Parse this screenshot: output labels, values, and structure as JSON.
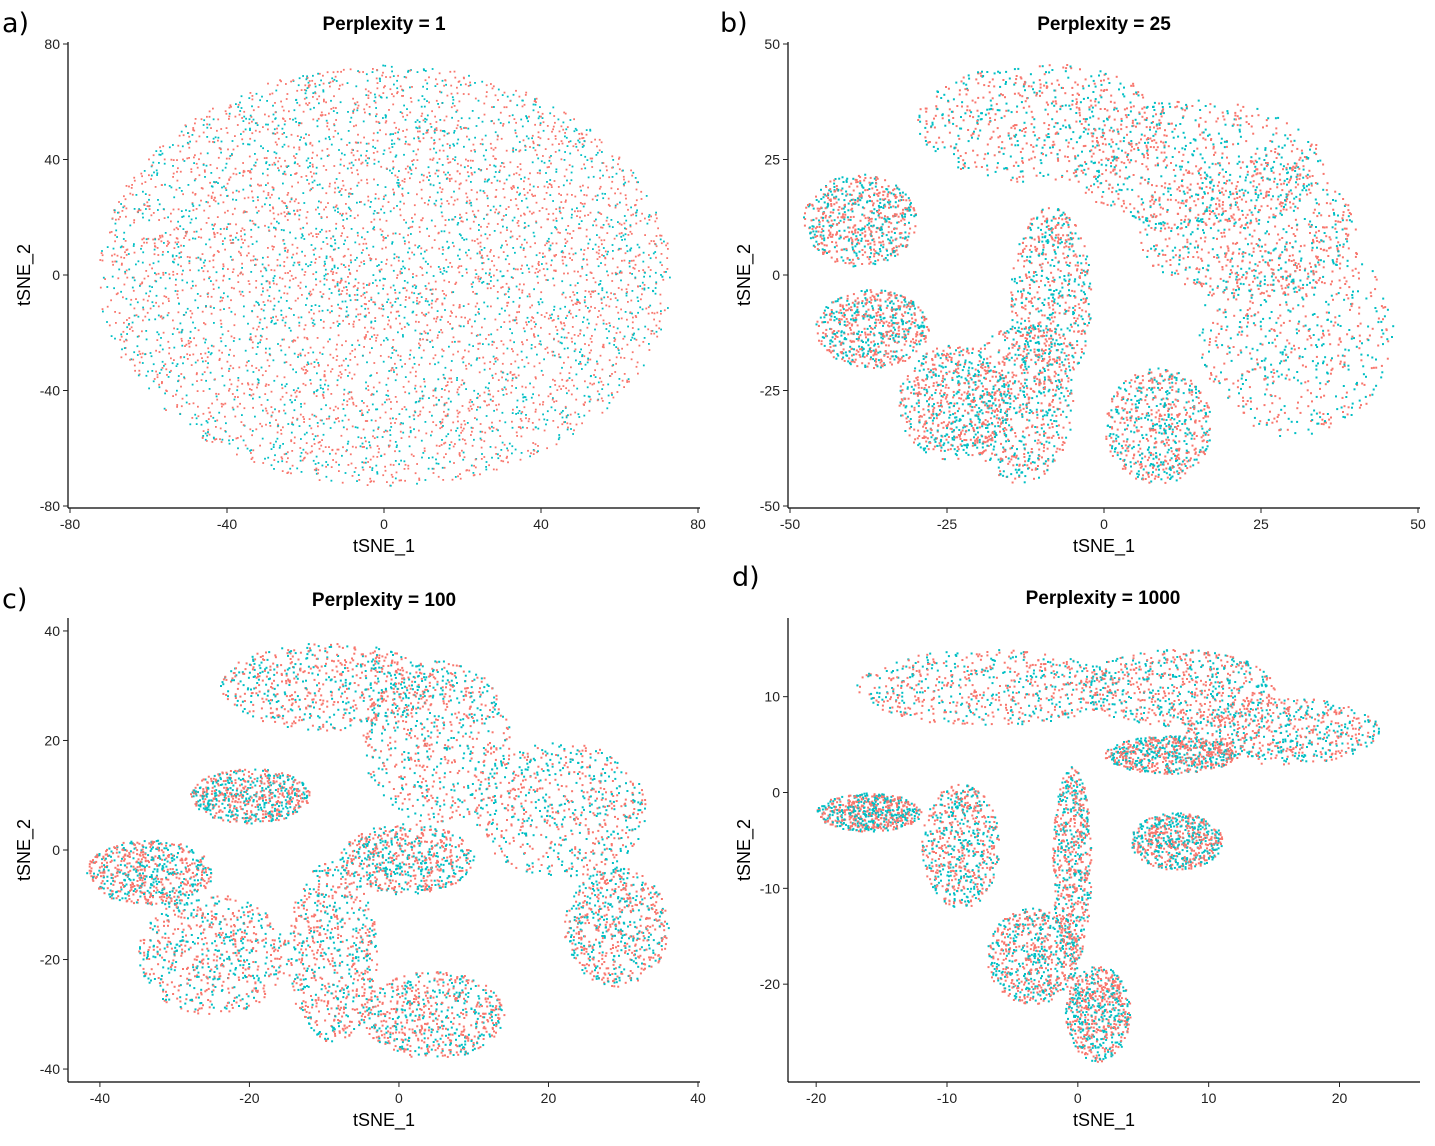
{
  "colors": {
    "series_a": "#F8766D",
    "series_b": "#00BFC4"
  },
  "chart_data": [
    {
      "type": "scatter",
      "panel_label": "a)",
      "title": "Perplexity = 1",
      "xlabel": "tSNE_1",
      "ylabel": "tSNE_2",
      "xlim": [
        -80,
        80
      ],
      "ylim": [
        -80,
        80
      ],
      "xticks": [
        "-80",
        "-40",
        "0",
        "40",
        "80"
      ],
      "yticks": [
        "80",
        "40",
        "0",
        "-40",
        "-80"
      ],
      "grid": false,
      "shape": "ellipse",
      "regions": [
        {
          "x": [
            -73,
            73
          ],
          "y": [
            -73,
            73
          ]
        }
      ]
    },
    {
      "type": "scatter",
      "panel_label": "b)",
      "title": "Perplexity = 25",
      "xlabel": "tSNE_1",
      "ylabel": "tSNE_2",
      "xlim": [
        -50,
        50
      ],
      "ylim": [
        -50,
        50
      ],
      "xticks": [
        "-50",
        "-25",
        "0",
        "25",
        "50"
      ],
      "yticks": [
        "50",
        "25",
        "0",
        "-25",
        "-50"
      ],
      "grid": false,
      "shape": "clusters",
      "regions": [
        {
          "x": [
            -30,
            10
          ],
          "y": [
            20,
            46
          ]
        },
        {
          "x": [
            -5,
            35
          ],
          "y": [
            10,
            38
          ]
        },
        {
          "x": [
            5,
            40
          ],
          "y": [
            -5,
            25
          ]
        },
        {
          "x": [
            15,
            46
          ],
          "y": [
            -35,
            10
          ]
        },
        {
          "x": [
            -48,
            -30
          ],
          "y": [
            2,
            22
          ]
        },
        {
          "x": [
            -46,
            -28
          ],
          "y": [
            -20,
            -3
          ]
        },
        {
          "x": [
            -33,
            -15
          ],
          "y": [
            -40,
            -15
          ]
        },
        {
          "x": [
            -22,
            -5
          ],
          "y": [
            -45,
            -10
          ]
        },
        {
          "x": [
            -15,
            -2
          ],
          "y": [
            -25,
            15
          ]
        },
        {
          "x": [
            0,
            17
          ],
          "y": [
            -45,
            -20
          ]
        }
      ]
    },
    {
      "type": "scatter",
      "panel_label": "c)",
      "title": "Perplexity = 100",
      "xlabel": "tSNE_1",
      "ylabel": "tSNE_2",
      "xlim": [
        -44,
        40
      ],
      "ylim": [
        -42,
        42
      ],
      "xticks": [
        "-40",
        "-20",
        "0",
        "20",
        "40"
      ],
      "yticks": [
        "40",
        "20",
        "0",
        "-20",
        "-40"
      ],
      "grid": false,
      "shape": "clusters",
      "regions": [
        {
          "x": [
            -24,
            5
          ],
          "y": [
            22,
            38
          ]
        },
        {
          "x": [
            -5,
            15
          ],
          "y": [
            5,
            35
          ]
        },
        {
          "x": [
            10,
            33
          ],
          "y": [
            -5,
            20
          ]
        },
        {
          "x": [
            22,
            36
          ],
          "y": [
            -25,
            -3
          ]
        },
        {
          "x": [
            -28,
            -12
          ],
          "y": [
            5,
            15
          ]
        },
        {
          "x": [
            -42,
            -25
          ],
          "y": [
            -10,
            2
          ]
        },
        {
          "x": [
            -35,
            -15
          ],
          "y": [
            -30,
            -8
          ]
        },
        {
          "x": [
            -15,
            -3
          ],
          "y": [
            -35,
            -2
          ]
        },
        {
          "x": [
            -5,
            14
          ],
          "y": [
            -38,
            -22
          ]
        },
        {
          "x": [
            -8,
            10
          ],
          "y": [
            -8,
            5
          ]
        }
      ]
    },
    {
      "type": "scatter",
      "panel_label": "d)",
      "title": "Perplexity = 1000",
      "xlabel": "tSNE_1",
      "ylabel": "tSNE_2",
      "xlim": [
        -22,
        26
      ],
      "ylim": [
        -30,
        18
      ],
      "xticks": [
        "-20",
        "-10",
        "0",
        "10",
        "20"
      ],
      "yticks": [
        "10",
        "0",
        "-10",
        "-20"
      ],
      "grid": false,
      "shape": "clusters",
      "regions": [
        {
          "x": [
            -17,
            3
          ],
          "y": [
            7,
            15
          ]
        },
        {
          "x": [
            0,
            15
          ],
          "y": [
            7,
            15
          ]
        },
        {
          "x": [
            8,
            23
          ],
          "y": [
            3,
            10
          ]
        },
        {
          "x": [
            -20,
            -12
          ],
          "y": [
            -4,
            0
          ]
        },
        {
          "x": [
            -12,
            -6
          ],
          "y": [
            -12,
            1
          ]
        },
        {
          "x": [
            -7,
            0
          ],
          "y": [
            -22,
            -12
          ]
        },
        {
          "x": [
            -1,
            4
          ],
          "y": [
            -28,
            -18
          ]
        },
        {
          "x": [
            -2,
            1
          ],
          "y": [
            -18,
            3
          ]
        },
        {
          "x": [
            4,
            11
          ],
          "y": [
            -8,
            -2
          ]
        },
        {
          "x": [
            2,
            12
          ],
          "y": [
            2,
            6
          ]
        }
      ]
    }
  ]
}
